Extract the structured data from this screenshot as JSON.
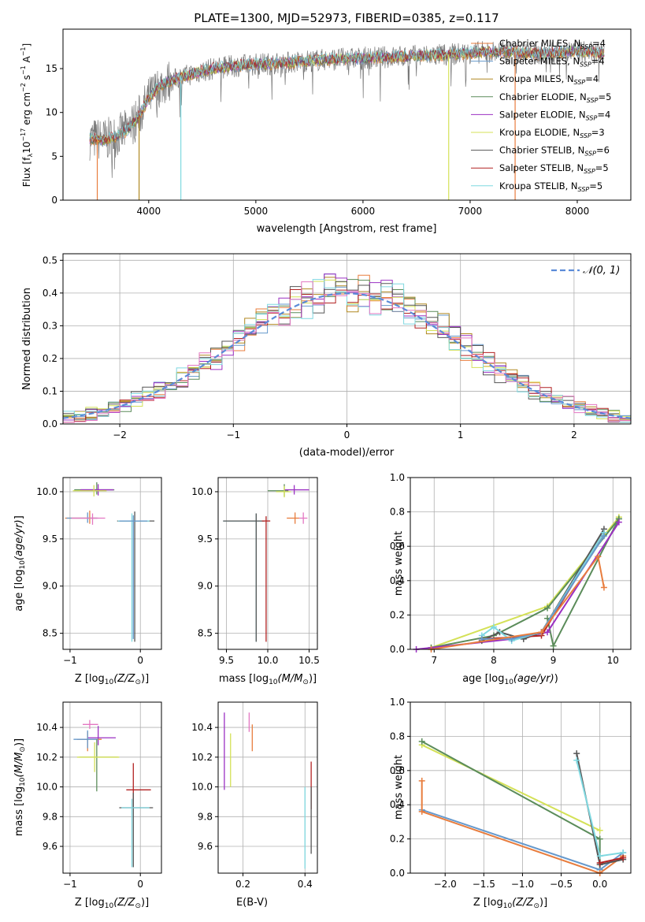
{
  "figure": {
    "title": "PLATE=1300, MJD=52973, FIBERID=0385, z=0.117"
  },
  "legend_spectrum": [
    {
      "name": "Chabrier MILES, N",
      "sub": "SSP",
      "tail": "=4",
      "color": "#e87d3e"
    },
    {
      "name": "Salpeter MILES, N",
      "sub": "SSP",
      "tail": "=4",
      "color": "#6699cc"
    },
    {
      "name": "Kroupa MILES, N",
      "sub": "SSP",
      "tail": "=4",
      "color": "#b08820"
    },
    {
      "name": "Chabrier ELODIE, N",
      "sub": "SSP",
      "tail": "=5",
      "color": "#5b8c5a"
    },
    {
      "name": "Salpeter ELODIE, N",
      "sub": "SSP",
      "tail": "=4",
      "color": "#9b30c2"
    },
    {
      "name": "Kroupa ELODIE, N",
      "sub": "SSP",
      "tail": "=3",
      "color": "#d4e157"
    },
    {
      "name": "Chabrier STELIB, N",
      "sub": "SSP",
      "tail": "=6",
      "color": "#555555"
    },
    {
      "name": "Salpeter STELIB, N",
      "sub": "SSP",
      "tail": "=5",
      "color": "#b22222"
    },
    {
      "name": "Kroupa STELIB, N",
      "sub": "SSP",
      "tail": "=5",
      "color": "#7fd8e0"
    }
  ],
  "colors": {
    "hist": [
      "#e87d3e",
      "#6699cc",
      "#b08820",
      "#5b8c5a",
      "#9b30c2",
      "#d4e157",
      "#555555",
      "#b22222",
      "#7fd8e0",
      "#e377c2"
    ],
    "gaussian": "#5b8bd8",
    "grid": "#b0b0b0"
  },
  "chart_data": [
    {
      "id": "spectrum",
      "type": "line",
      "xlabel": "wavelength [Angstrom, rest frame]",
      "ylabel": "Flux [f",
      "ylabel_parts": [
        "Flux [f",
        "λ",
        "10",
        "−17",
        " erg cm",
        "−2",
        " s",
        "−1",
        " A",
        "−1",
        "]"
      ],
      "xlim": [
        3200,
        8500
      ],
      "ylim": [
        0,
        19.5
      ],
      "xticks": [
        4000,
        5000,
        6000,
        7000,
        8000
      ],
      "yticks": [
        0,
        5,
        10,
        15
      ],
      "continuum": {
        "x": [
          3450,
          3600,
          3700,
          3800,
          3900,
          4000,
          4100,
          4200,
          4400,
          4600,
          4800,
          5000,
          5200,
          5400,
          5600,
          5800,
          6000,
          6200,
          6400,
          6600,
          6800,
          7000,
          7200,
          7400,
          7600,
          7800,
          8000,
          8200
        ],
        "y": [
          7.0,
          6.9,
          7.3,
          8.0,
          9.4,
          11.6,
          13.0,
          13.6,
          14.4,
          15.0,
          15.3,
          15.5,
          15.6,
          15.8,
          16.0,
          16.1,
          16.2,
          16.3,
          16.4,
          16.5,
          16.6,
          16.8,
          16.9,
          16.9,
          16.7,
          16.8,
          17.0,
          16.7
        ]
      },
      "dropouts": [
        {
          "x": 3520,
          "color": "#e87d3e"
        },
        {
          "x": 3910,
          "color": "#b08820"
        },
        {
          "x": 4300,
          "color": "#7fd8e0"
        },
        {
          "x": 6800,
          "color": "#d4e157"
        },
        {
          "x": 7420,
          "color": "#e87d3e"
        }
      ],
      "grid": false,
      "legend_placement": "right"
    },
    {
      "id": "residuals",
      "type": "step-histogram",
      "xlabel": "(data-model)/error",
      "ylabel": "Normed distribution",
      "xlim": [
        -2.5,
        2.5
      ],
      "ylim": [
        0,
        0.52
      ],
      "xticks": [
        -2,
        -1,
        0,
        1,
        2
      ],
      "xtick_labels": [
        "−2",
        "−1",
        "0",
        "1",
        "2"
      ],
      "yticks": [
        0.0,
        0.1,
        0.2,
        0.3,
        0.4,
        0.5
      ],
      "ytick_labels": [
        "0.0",
        "0.1",
        "0.2",
        "0.3",
        "0.4",
        "0.5"
      ],
      "legend": "𝒩(0, 1)",
      "grid": true,
      "bins": 50,
      "series_count": 10
    },
    {
      "id": "age_vs_Z",
      "type": "errorbar",
      "xlabel": "Z [log",
      "ylabel": "age  [log",
      "xlim": [
        -1.1,
        0.3
      ],
      "ylim": [
        8.33,
        10.15
      ],
      "xticks": [
        -1,
        0
      ],
      "xtick_labels": [
        "−1",
        "0"
      ],
      "yticks": [
        8.5,
        9.0,
        9.5,
        10.0
      ],
      "ytick_labels": [
        "8.5",
        "9.0",
        "9.5",
        "10.0"
      ],
      "points": [
        {
          "x": -0.62,
          "y": 10.02,
          "xerr": [
            0.32,
            0.25
          ],
          "yerr": [
            0.05,
            0.08
          ],
          "color": "#5b8c5a"
        },
        {
          "x": -0.6,
          "y": 10.02,
          "xerr": [
            0.25,
            0.22
          ],
          "yerr": [
            0.06,
            0.06
          ],
          "color": "#9b30c2"
        },
        {
          "x": -0.66,
          "y": 10.01,
          "xerr": [
            0.3,
            0.18
          ],
          "yerr": [
            0.06,
            0.06
          ],
          "color": "#d4e157"
        },
        {
          "x": -0.72,
          "y": 9.72,
          "xerr": [
            0.35,
            0.1
          ],
          "yerr": [
            0.06,
            0.08
          ],
          "color": "#e87d3e"
        },
        {
          "x": -0.75,
          "y": 9.72,
          "xerr": [
            0.3,
            0.15
          ],
          "yerr": [
            0.05,
            0.06
          ],
          "color": "#6699cc"
        },
        {
          "x": -0.68,
          "y": 9.72,
          "xerr": [
            0.3,
            0.18
          ],
          "yerr": [
            0.07,
            0.05
          ],
          "color": "#e377c2"
        },
        {
          "x": -0.08,
          "y": 9.69,
          "xerr": [
            0.25,
            0.28
          ],
          "yerr": [
            1.28,
            0.1
          ],
          "color": "#555555"
        },
        {
          "x": -0.12,
          "y": 9.69,
          "xerr": [
            0.2,
            0.25
          ],
          "yerr": [
            1.28,
            0.08
          ],
          "color": "#7fd8e0"
        },
        {
          "x": -0.1,
          "y": 9.69,
          "xerr": [
            0.2,
            0.2
          ],
          "yerr": [
            1.25,
            0.06
          ],
          "color": "#6699cc"
        }
      ],
      "grid": true
    },
    {
      "id": "age_vs_mass",
      "type": "errorbar",
      "xlabel": "mass [log",
      "xlim": [
        9.4,
        10.6
      ],
      "ylim": [
        8.33,
        10.15
      ],
      "xticks": [
        9.5,
        10.0,
        10.5
      ],
      "xtick_labels": [
        "9.5",
        "10.0",
        "10.5"
      ],
      "yticks": [
        8.5,
        9.0,
        9.5,
        10.0
      ],
      "ytick_labels": [
        "8.5",
        "9.0",
        "9.5",
        "10.0"
      ],
      "points": [
        {
          "x": 10.2,
          "y": 10.01,
          "xerr": [
            0.2,
            0.05
          ],
          "yerr": [
            0.06,
            0.07
          ],
          "color": "#5b8c5a"
        },
        {
          "x": 10.32,
          "y": 10.02,
          "xerr": [
            0.12,
            0.18
          ],
          "yerr": [
            0.05,
            0.05
          ],
          "color": "#9b30c2"
        },
        {
          "x": 10.2,
          "y": 10.0,
          "xerr": [
            0.1,
            0.08
          ],
          "yerr": [
            0.06,
            0.06
          ],
          "color": "#d4e157"
        },
        {
          "x": 10.33,
          "y": 9.72,
          "xerr": [
            0.1,
            0.05
          ],
          "yerr": [
            0.06,
            0.06
          ],
          "color": "#e87d3e"
        },
        {
          "x": 10.43,
          "y": 9.72,
          "xerr": [
            0.05,
            0.05
          ],
          "yerr": [
            0.06,
            0.06
          ],
          "color": "#e377c2"
        },
        {
          "x": 9.86,
          "y": 9.69,
          "xerr": [
            0.4,
            0.1
          ],
          "yerr": [
            1.28,
            0.08
          ],
          "color": "#7fd8e0"
        },
        {
          "x": 9.86,
          "y": 9.69,
          "xerr": [
            0.4,
            0.1
          ],
          "yerr": [
            1.28,
            0.08
          ],
          "color": "#555555"
        },
        {
          "x": 9.98,
          "y": 9.69,
          "xerr": [
            0.05,
            0.05
          ],
          "yerr": [
            1.28,
            0.05
          ],
          "color": "#b22222"
        }
      ],
      "grid": true
    },
    {
      "id": "massweight_vs_age",
      "type": "line",
      "xlabel": "age  [log",
      "ylabel": "mass weight",
      "xlim": [
        6.6,
        10.3
      ],
      "ylim": [
        0,
        1.0
      ],
      "xticks": [
        7,
        8,
        9,
        10
      ],
      "yticks": [
        0.0,
        0.2,
        0.4,
        0.6,
        0.8,
        1.0
      ],
      "ytick_labels": [
        "0.0",
        "0.2",
        "0.4",
        "0.6",
        "0.8",
        "1.0"
      ],
      "series": [
        {
          "color": "#d4e157",
          "x": [
            6.95,
            8.9,
            10.1
          ],
          "y": [
            0.01,
            0.25,
            0.77
          ]
        },
        {
          "color": "#5b8c5a",
          "x": [
            6.95,
            8.0,
            8.9,
            10.1
          ],
          "y": [
            0.01,
            0.08,
            0.24,
            0.76
          ]
        },
        {
          "color": "#5b8c5a",
          "x": [
            8.9,
            9.0,
            10.1
          ],
          "y": [
            0.18,
            0.02,
            0.76
          ]
        },
        {
          "color": "#9b30c2",
          "x": [
            6.7,
            8.3,
            8.9,
            10.1
          ],
          "y": [
            0.0,
            0.06,
            0.1,
            0.74
          ]
        },
        {
          "color": "#555555",
          "x": [
            7.8,
            8.1,
            8.5,
            8.8,
            9.85
          ],
          "y": [
            0.05,
            0.1,
            0.06,
            0.1,
            0.7
          ]
        },
        {
          "color": "#b22222",
          "x": [
            7.8,
            8.8,
            9.85
          ],
          "y": [
            0.06,
            0.08,
            0.68
          ]
        },
        {
          "color": "#7fd8e0",
          "x": [
            7.8,
            8.0,
            8.3,
            8.8,
            9.85
          ],
          "y": [
            0.08,
            0.13,
            0.05,
            0.1,
            0.68
          ]
        },
        {
          "color": "#6699cc",
          "x": [
            7.8,
            8.3,
            8.8,
            9.85
          ],
          "y": [
            0.06,
            0.06,
            0.1,
            0.66
          ]
        },
        {
          "color": "#e87d3e",
          "x": [
            6.95,
            8.8,
            9.75,
            9.85
          ],
          "y": [
            0.0,
            0.1,
            0.54,
            0.36
          ]
        }
      ],
      "grid": true
    },
    {
      "id": "mass_vs_Z",
      "type": "errorbar",
      "xlabel": "Z [log",
      "ylabel": "mass [log",
      "xlim": [
        -1.1,
        0.3
      ],
      "ylim": [
        9.42,
        10.57
      ],
      "xticks": [
        -1,
        0
      ],
      "xtick_labels": [
        "−1",
        "0"
      ],
      "yticks": [
        9.6,
        9.8,
        10.0,
        10.2,
        10.4
      ],
      "ytick_labels": [
        "9.6",
        "9.8",
        "10.0",
        "10.2",
        "10.4"
      ],
      "points": [
        {
          "x": -0.72,
          "y": 10.42,
          "xerr": [
            0.1,
            0.12
          ],
          "yerr": [
            0.03,
            0.03
          ],
          "color": "#e377c2"
        },
        {
          "x": -0.6,
          "y": 10.33,
          "xerr": [
            0.15,
            0.25
          ],
          "yerr": [
            0.05,
            0.08
          ],
          "color": "#9b30c2"
        },
        {
          "x": -0.75,
          "y": 10.32,
          "xerr": [
            0.15,
            0.2
          ],
          "yerr": [
            0.08,
            0.05
          ],
          "color": "#e87d3e"
        },
        {
          "x": -0.75,
          "y": 10.32,
          "xerr": [
            0.2,
            0.15
          ],
          "yerr": [
            0.06,
            0.06
          ],
          "color": "#6699cc"
        },
        {
          "x": -0.62,
          "y": 10.2,
          "xerr": [
            0.25,
            0.3
          ],
          "yerr": [
            0.23,
            0.12
          ],
          "color": "#5b8c5a"
        },
        {
          "x": -0.65,
          "y": 10.2,
          "xerr": [
            0.25,
            0.35
          ],
          "yerr": [
            0.1,
            0.1
          ],
          "color": "#d4e157"
        },
        {
          "x": -0.1,
          "y": 9.98,
          "xerr": [
            0.1,
            0.25
          ],
          "yerr": [
            0.12,
            0.18
          ],
          "color": "#b22222"
        },
        {
          "x": -0.1,
          "y": 9.86,
          "xerr": [
            0.2,
            0.28
          ],
          "yerr": [
            0.4,
            0.1
          ],
          "color": "#555555"
        },
        {
          "x": -0.12,
          "y": 9.86,
          "xerr": [
            0.15,
            0.25
          ],
          "yerr": [
            0.4,
            0.06
          ],
          "color": "#7fd8e0"
        }
      ],
      "grid": true
    },
    {
      "id": "mass_vs_EBV",
      "type": "errorbar",
      "xlabel": "E(B-V)",
      "xlim": [
        0.12,
        0.44
      ],
      "ylim": [
        9.42,
        10.57
      ],
      "xticks": [
        0.2,
        0.4
      ],
      "xtick_labels": [
        "0.2",
        "0.4"
      ],
      "yticks": [
        9.6,
        9.8,
        10.0,
        10.2,
        10.4
      ],
      "ytick_labels": [
        "9.6",
        "9.8",
        "10.0",
        "10.2",
        "10.4"
      ],
      "points": [
        {
          "x": 0.14,
          "y": 10.3,
          "yerr": [
            0.32,
            0.2
          ],
          "color": "#9b30c2"
        },
        {
          "x": 0.16,
          "y": 10.18,
          "yerr": [
            0.18,
            0.18
          ],
          "color": "#d4e157"
        },
        {
          "x": 0.22,
          "y": 10.42,
          "yerr": [
            0.05,
            0.08
          ],
          "color": "#e377c2"
        },
        {
          "x": 0.23,
          "y": 10.32,
          "yerr": [
            0.08,
            0.1
          ],
          "color": "#e87d3e"
        },
        {
          "x": 0.4,
          "y": 9.8,
          "yerr": [
            0.35,
            0.2
          ],
          "color": "#7fd8e0"
        },
        {
          "x": 0.42,
          "y": 10.05,
          "yerr": [
            0.2,
            0.12
          ],
          "color": "#b22222"
        },
        {
          "x": 0.42,
          "y": 9.85,
          "yerr": [
            0.3,
            0.15
          ],
          "color": "#555555"
        }
      ],
      "grid": true
    },
    {
      "id": "massweight_vs_Z",
      "type": "line",
      "xlabel": "Z [log",
      "ylabel": "mass weight",
      "xlim": [
        -2.45,
        0.4
      ],
      "ylim": [
        0,
        1.0
      ],
      "xticks": [
        -2.0,
        -1.5,
        -1.0,
        -0.5,
        0.0
      ],
      "xtick_labels": [
        "−2.0",
        "−1.5",
        "−1.0",
        "−0.5",
        "0.0"
      ],
      "yticks": [
        0.0,
        0.2,
        0.4,
        0.6,
        0.8,
        1.0
      ],
      "ytick_labels": [
        "0.0",
        "0.2",
        "0.4",
        "0.6",
        "0.8",
        "1.0"
      ],
      "series": [
        {
          "color": "#d4e157",
          "x": [
            -2.3,
            0.0
          ],
          "y": [
            0.75,
            0.25
          ]
        },
        {
          "color": "#5b8c5a",
          "x": [
            -2.3,
            0.0,
            0.0
          ],
          "y": [
            0.77,
            0.2,
            0.02
          ]
        },
        {
          "color": "#6699cc",
          "x": [
            -2.3,
            0.0,
            0.3
          ],
          "y": [
            0.37,
            0.02,
            0.12
          ]
        },
        {
          "color": "#e87d3e",
          "x": [
            -2.3,
            -2.3,
            0.0,
            0.3
          ],
          "y": [
            0.54,
            0.36,
            0.0,
            0.1
          ]
        },
        {
          "color": "#555555",
          "x": [
            -0.3,
            0.0,
            0.3
          ],
          "y": [
            0.7,
            0.05,
            0.08
          ]
        },
        {
          "color": "#7fd8e0",
          "x": [
            -0.3,
            0.0,
            0.3
          ],
          "y": [
            0.66,
            0.1,
            0.12
          ]
        },
        {
          "color": "#b22222",
          "x": [
            0.0,
            0.3
          ],
          "y": [
            0.06,
            0.09
          ]
        }
      ],
      "grid": true
    }
  ]
}
